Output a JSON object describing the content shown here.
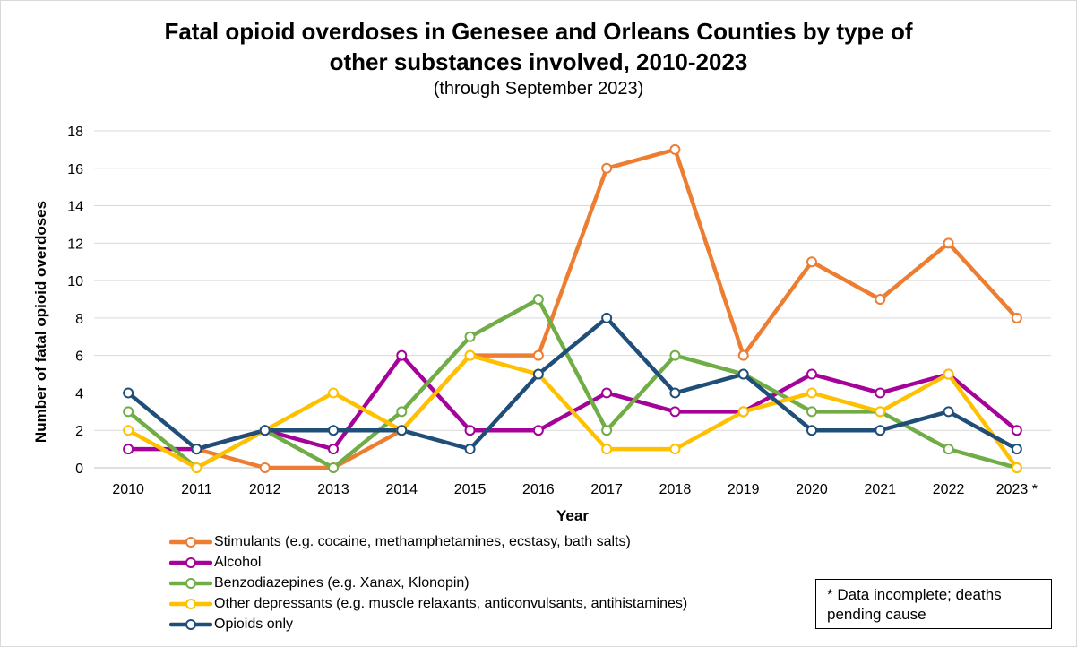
{
  "chart_data": {
    "type": "line",
    "title_line1": "Fatal opioid overdoses in Genesee and Orleans Counties by type of",
    "title_line2": "other substances involved, 2010-2023",
    "subtitle": "(through September 2023)",
    "xlabel": "Year",
    "ylabel": "Number of fatal opioid overdoses",
    "categories": [
      "2010",
      "2011",
      "2012",
      "2013",
      "2014",
      "2015",
      "2016",
      "2017",
      "2018",
      "2019",
      "2020",
      "2021",
      "2022",
      "2023 *"
    ],
    "ylim": [
      0,
      18
    ],
    "yticks": [
      0,
      2,
      4,
      6,
      8,
      10,
      12,
      14,
      16,
      18
    ],
    "grid": "horizontal",
    "legend_position": "bottom-left",
    "series": [
      {
        "name": "Stimulants (e.g. cocaine, methamphetamines, ecstasy, bath salts)",
        "color": "#ED7D31",
        "values": [
          null,
          1,
          0,
          0,
          2,
          6,
          6,
          16,
          17,
          6,
          11,
          9,
          12,
          8
        ]
      },
      {
        "name": "Alcohol",
        "color": "#A5029A",
        "values": [
          1,
          1,
          2,
          1,
          6,
          2,
          2,
          4,
          3,
          3,
          5,
          4,
          5,
          2
        ]
      },
      {
        "name": "Benzodiazepines (e.g. Xanax, Klonopin)",
        "color": "#70AD47",
        "values": [
          3,
          0,
          2,
          0,
          3,
          7,
          9,
          2,
          6,
          5,
          3,
          3,
          1,
          0
        ]
      },
      {
        "name": "Other depressants (e.g. muscle relaxants, anticonvulsants, antihistamines)",
        "color": "#FFC000",
        "values": [
          2,
          0,
          2,
          4,
          2,
          6,
          5,
          1,
          1,
          3,
          4,
          3,
          5,
          0
        ]
      },
      {
        "name": "Opioids only",
        "color": "#1F4E79",
        "values": [
          4,
          1,
          2,
          2,
          2,
          1,
          5,
          8,
          4,
          5,
          2,
          2,
          3,
          1
        ]
      }
    ]
  },
  "note": {
    "line1": "* Data incomplete; deaths",
    "line2": "pending cause"
  }
}
